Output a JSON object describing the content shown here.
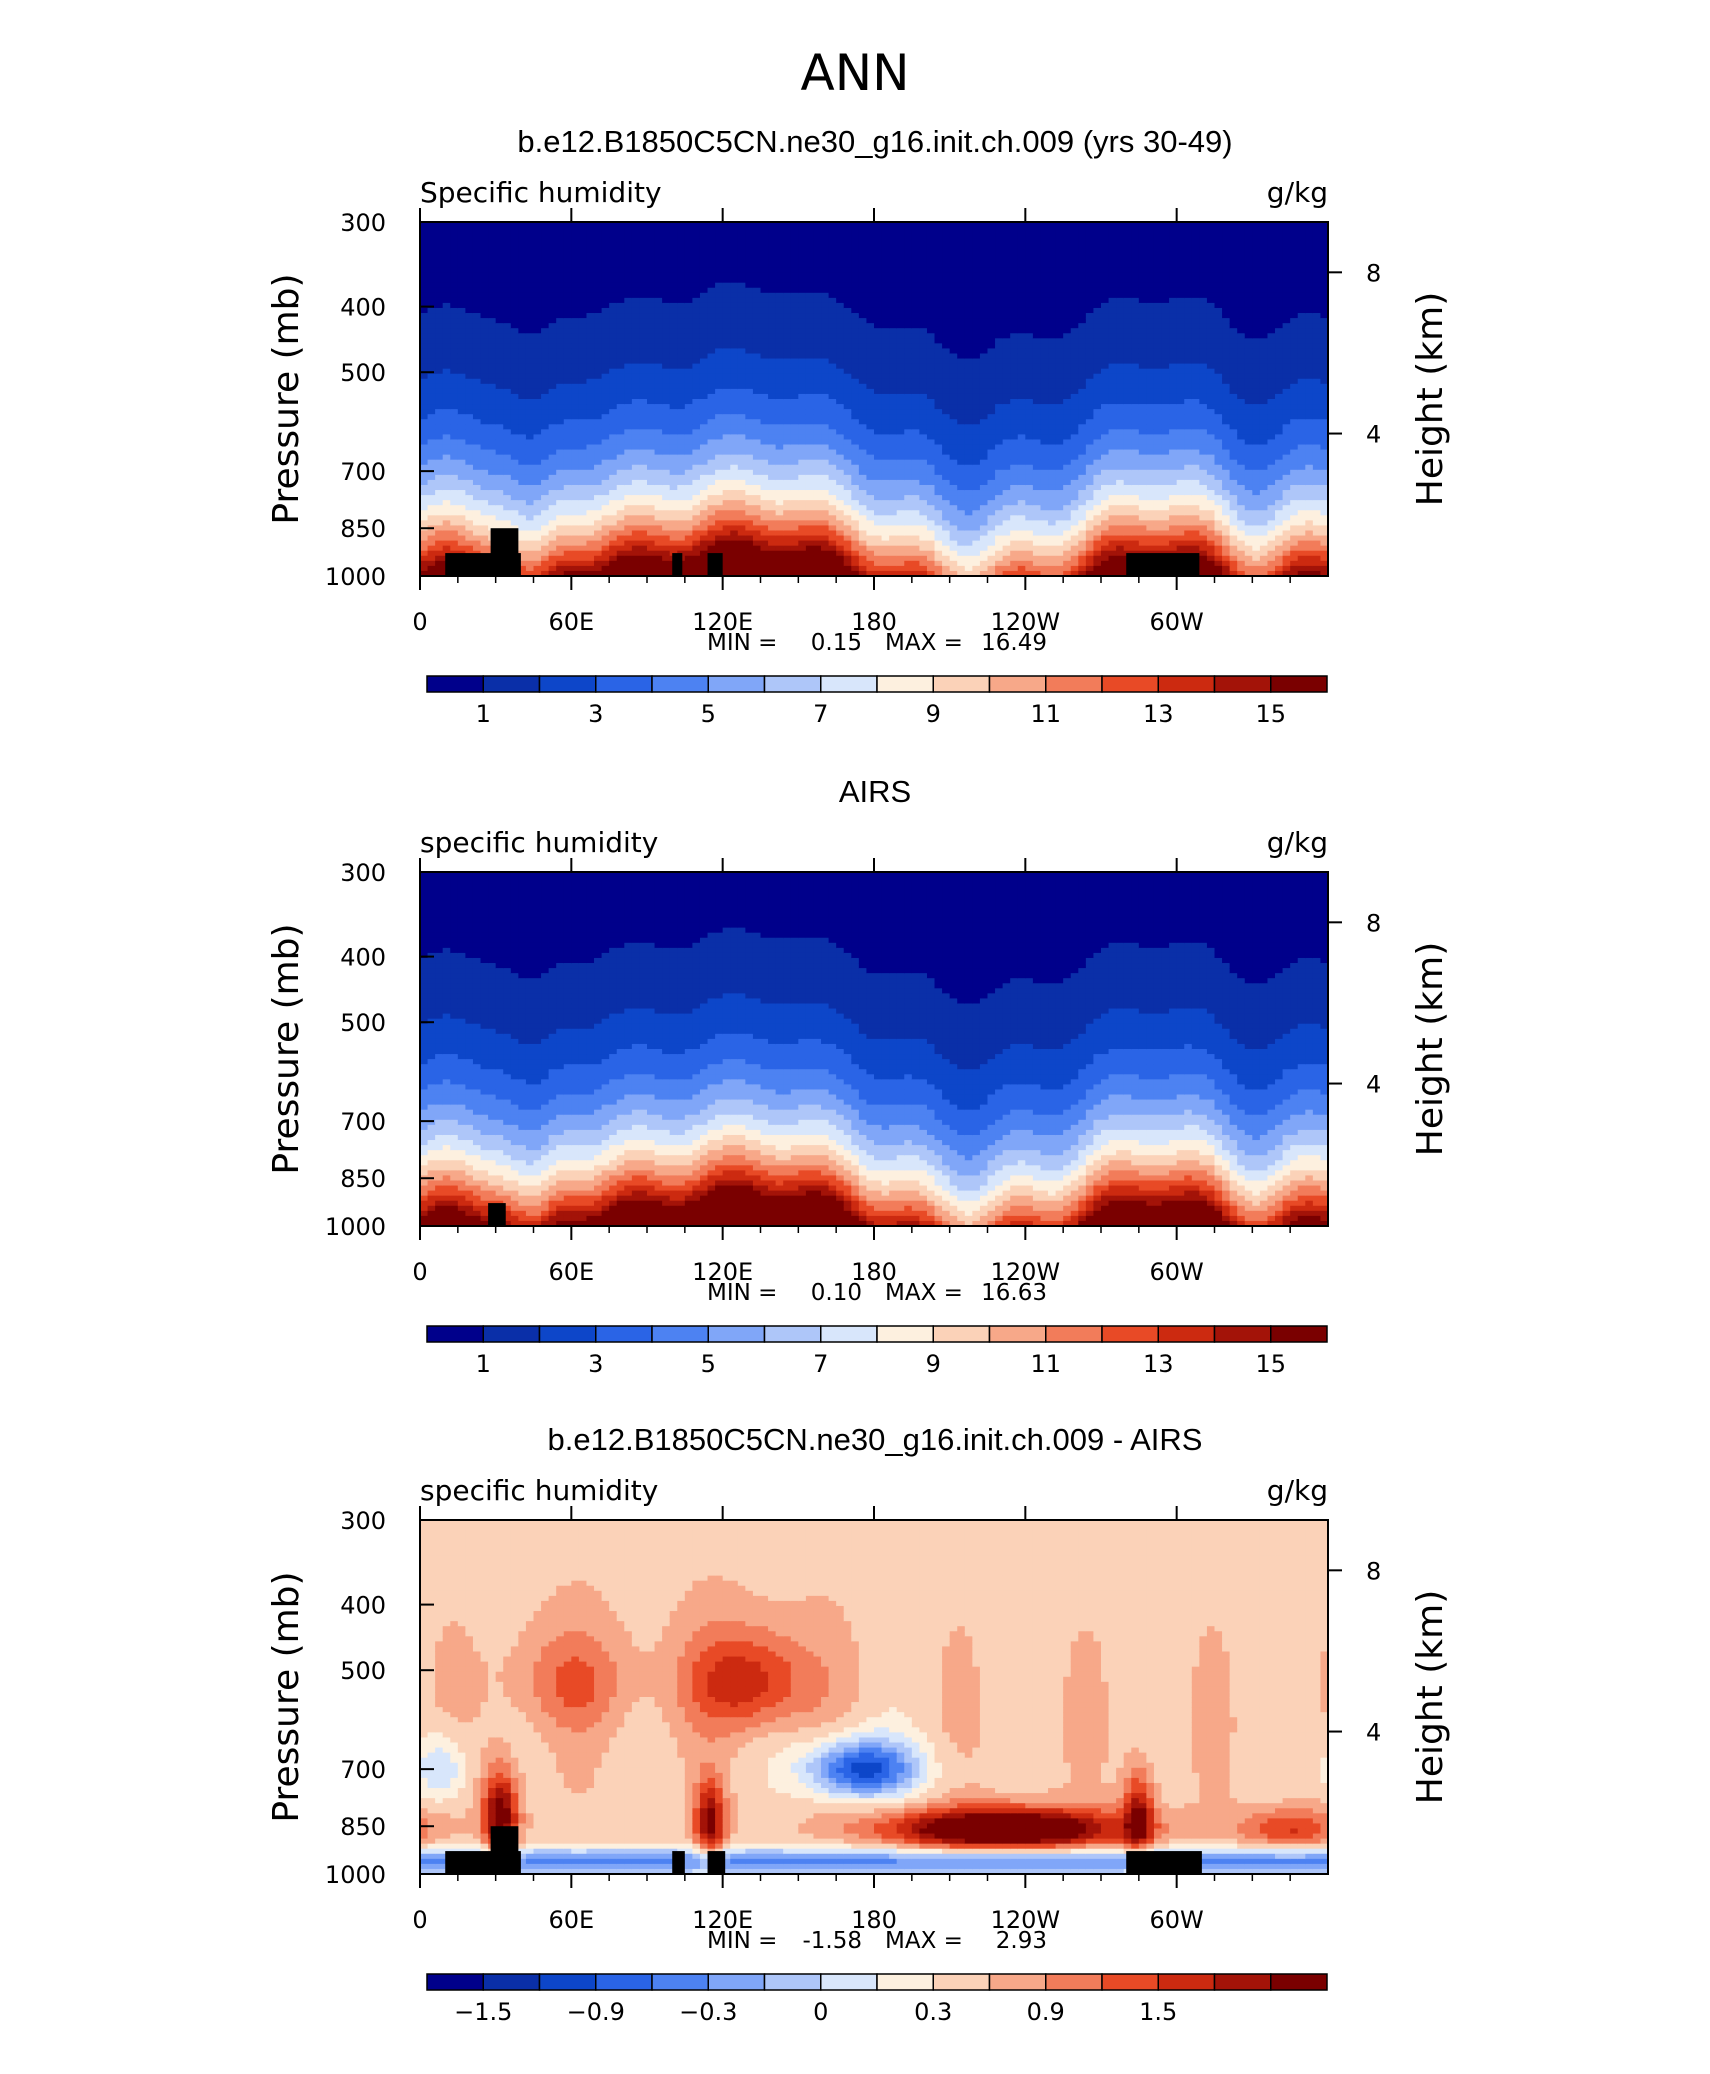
{
  "figure_title": "ANN",
  "colors": {
    "seq_levels": [
      "#00008b",
      "#0a2fa8",
      "#0d46c9",
      "#2a64e6",
      "#4d82f2",
      "#80a6f8",
      "#aec6f9",
      "#d8e6fb",
      "#fdf0df",
      "#fbd2b8",
      "#f7a889",
      "#f27c5a",
      "#e84a26",
      "#cc2a10",
      "#a31308",
      "#7a0000"
    ],
    "diff_levels": [
      "#00008b",
      "#0a2fa8",
      "#0d46c9",
      "#2a64e6",
      "#4d82f2",
      "#80a6f8",
      "#aec6f9",
      "#d8e6fb",
      "#fdf0df",
      "#fbd2b8",
      "#f7a889",
      "#f27c5a",
      "#e84a26",
      "#cc2a10",
      "#a31308",
      "#7a0000"
    ],
    "terrain": "#000000"
  },
  "chart_data": [
    {
      "type": "heatmap",
      "title": "b.e12.B1850C5CN.ne30_g16.init.ch.009 (yrs 30-49)",
      "left_label": "Specific humidity",
      "units": "g/kg",
      "ylabel": "Pressure (mb)",
      "ylabel_right": "Height (km)",
      "x_ticks": [
        "0",
        "60E",
        "120E",
        "180",
        "120W",
        "60W"
      ],
      "y_ticks": [
        "300",
        "400",
        "500",
        "700",
        "850",
        "1000"
      ],
      "right_ticks": [
        "8",
        "4"
      ],
      "xlim": [
        0,
        360
      ],
      "ylim": [
        1000,
        300
      ],
      "min_label": "MIN =",
      "min_value": "0.15",
      "max_label": "MAX =",
      "max_value": "16.49",
      "min": 0.15,
      "max": 16.49,
      "colorbar_labels": [
        "1",
        "3",
        "5",
        "7",
        "9",
        "11",
        "13",
        "15"
      ],
      "colorbar_levels": [
        0,
        16
      ],
      "mode": "seq",
      "amp": 1.0,
      "terrain": [
        {
          "lon0": 10,
          "lon1": 40,
          "p_top": 925
        },
        {
          "lon0": 28,
          "lon1": 39,
          "p_top": 850
        },
        {
          "lon0": 100,
          "lon1": 104,
          "p_top": 925
        },
        {
          "lon0": 114,
          "lon1": 120,
          "p_top": 925
        },
        {
          "lon0": 280,
          "lon1": 309,
          "p_top": 925
        }
      ]
    },
    {
      "type": "heatmap",
      "title": "AIRS",
      "left_label": "specific humidity",
      "units": "g/kg",
      "ylabel": "Pressure (mb)",
      "ylabel_right": "Height (km)",
      "x_ticks": [
        "0",
        "60E",
        "120E",
        "180",
        "120W",
        "60W"
      ],
      "y_ticks": [
        "300",
        "400",
        "500",
        "700",
        "850",
        "1000"
      ],
      "right_ticks": [
        "8",
        "4"
      ],
      "xlim": [
        0,
        360
      ],
      "ylim": [
        1000,
        300
      ],
      "min_label": "MIN =",
      "min_value": "0.10",
      "max_label": "MAX =",
      "max_value": "16.63",
      "min": 0.1,
      "max": 16.63,
      "colorbar_labels": [
        "1",
        "3",
        "5",
        "7",
        "9",
        "11",
        "13",
        "15"
      ],
      "colorbar_levels": [
        0,
        16
      ],
      "mode": "seq",
      "amp": 1.05,
      "terrain": [
        {
          "lon0": 27,
          "lon1": 34,
          "p_top": 925
        }
      ]
    },
    {
      "type": "heatmap",
      "title": "b.e12.B1850C5CN.ne30_g16.init.ch.009 - AIRS",
      "left_label": "specific humidity",
      "units": "g/kg",
      "ylabel": "Pressure (mb)",
      "ylabel_right": "Height (km)",
      "x_ticks": [
        "0",
        "60E",
        "120E",
        "180",
        "120W",
        "60W"
      ],
      "y_ticks": [
        "300",
        "400",
        "500",
        "700",
        "850",
        "1000"
      ],
      "right_ticks": [
        "8",
        "4"
      ],
      "xlim": [
        0,
        360
      ],
      "ylim": [
        1000,
        300
      ],
      "min_label": "MIN =",
      "min_value": "-1.58",
      "max_label": "MAX =",
      "max_value": "2.93",
      "min": -1.58,
      "max": 2.93,
      "colorbar_labels": [
        "−1.5",
        "−0.9",
        "−0.3",
        "0",
        "0.3",
        "0.9",
        "1.5"
      ],
      "colorbar_levels": [
        -2.1,
        2.1
      ],
      "mode": "diff",
      "amp": 1.0,
      "terrain": [
        {
          "lon0": 10,
          "lon1": 40,
          "p_top": 925
        },
        {
          "lon0": 28,
          "lon1": 39,
          "p_top": 850
        },
        {
          "lon0": 100,
          "lon1": 105,
          "p_top": 925
        },
        {
          "lon0": 114,
          "lon1": 121,
          "p_top": 925
        },
        {
          "lon0": 280,
          "lon1": 310,
          "p_top": 925
        }
      ]
    }
  ]
}
